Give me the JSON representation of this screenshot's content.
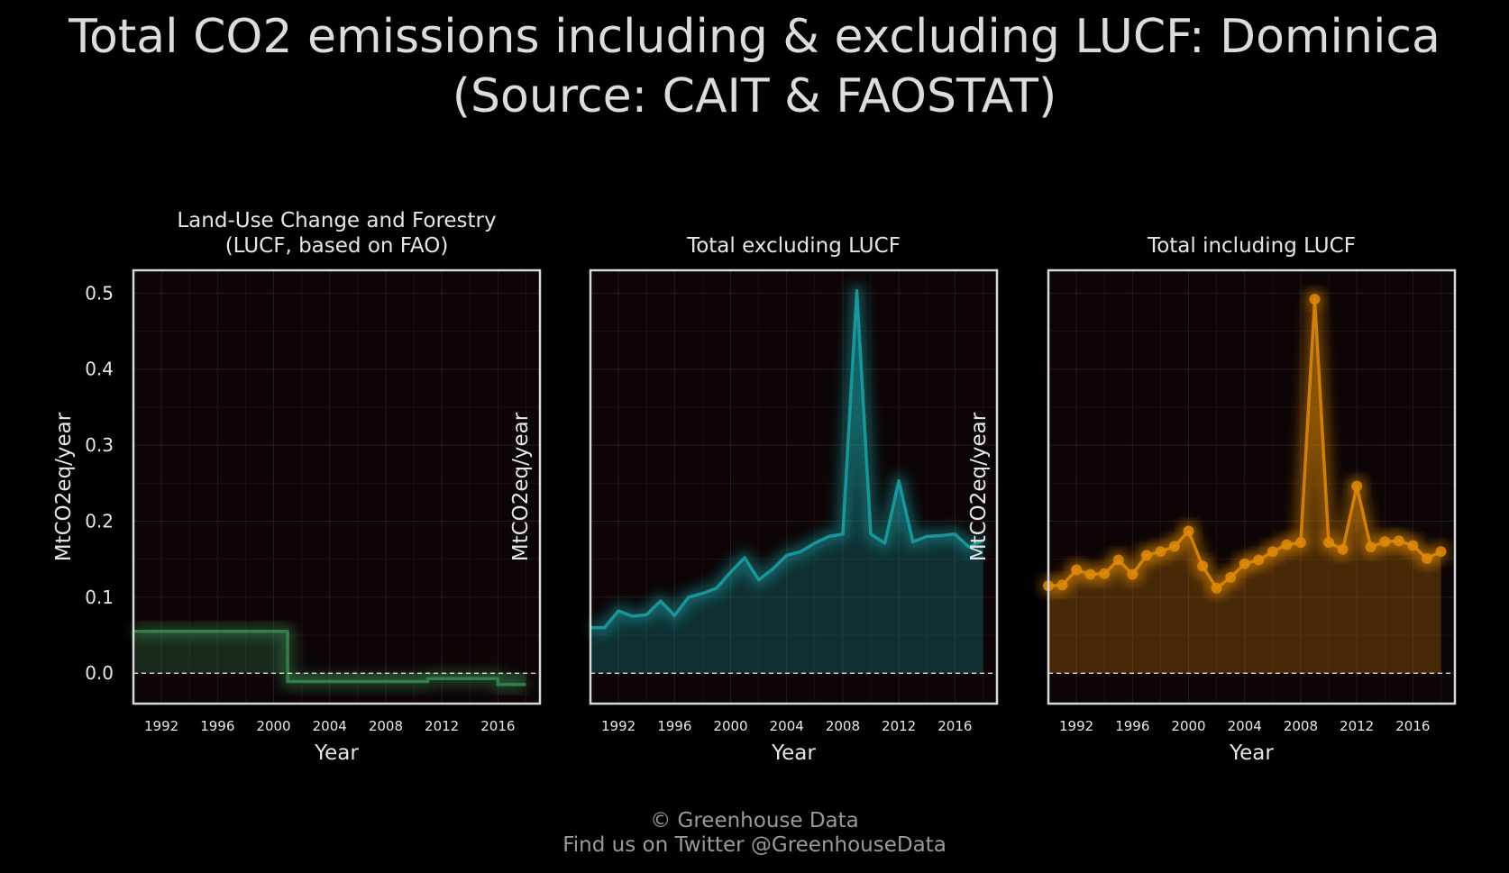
{
  "title": {
    "line1": "Total CO2 emissions including & excluding LUCF: Dominica",
    "line2": "(Source: CAIT & FAOSTAT)"
  },
  "footer": {
    "line1": "© Greenhouse Data",
    "line2": "Find us on Twitter @GreenhouseData"
  },
  "colors": {
    "background": "#000000",
    "plot_background": "#0c0405",
    "frame": "#d9d9d9",
    "lucf": "#3a8a52",
    "excl": "#1aa3a8",
    "incl": "#e08a0a"
  },
  "chart_data": [
    {
      "type": "line",
      "title": [
        "Land-Use Change and Forestry",
        "(LUCF, based on FAO)"
      ],
      "xlabel": "Year",
      "ylabel": "MtCO2eq/year",
      "xlim": [
        1990,
        2019
      ],
      "ylim": [
        -0.04,
        0.53
      ],
      "x_ticks": [
        1992,
        1996,
        2000,
        2004,
        2008,
        2012,
        2016
      ],
      "y_ticks": [
        "0.0",
        "0.1",
        "0.2",
        "0.3",
        "0.4",
        "0.5"
      ],
      "grid": true,
      "step": true,
      "markers": false,
      "fill": true,
      "zero_line": true,
      "series": [
        {
          "color": "#3a8a52",
          "x": [
            1990,
            1991,
            1992,
            1993,
            1994,
            1995,
            1996,
            1997,
            1998,
            1999,
            2000,
            2001,
            2002,
            2003,
            2004,
            2005,
            2006,
            2007,
            2008,
            2009,
            2010,
            2011,
            2012,
            2013,
            2014,
            2015,
            2016,
            2017,
            2018
          ],
          "y": [
            0.055,
            0.055,
            0.055,
            0.055,
            0.055,
            0.055,
            0.055,
            0.055,
            0.055,
            0.055,
            0.055,
            -0.011,
            -0.011,
            -0.011,
            -0.011,
            -0.011,
            -0.011,
            -0.011,
            -0.011,
            -0.011,
            -0.011,
            -0.007,
            -0.007,
            -0.007,
            -0.007,
            -0.007,
            -0.015,
            -0.015,
            -0.015
          ]
        }
      ]
    },
    {
      "type": "area",
      "title": [
        "Total excluding LUCF"
      ],
      "xlabel": "Year",
      "ylabel": "MtCO2eq/year",
      "xlim": [
        1990,
        2019
      ],
      "ylim": [
        -0.04,
        0.53
      ],
      "x_ticks": [
        1992,
        1996,
        2000,
        2004,
        2008,
        2012,
        2016
      ],
      "y_ticks": [],
      "grid": true,
      "step": false,
      "markers": false,
      "fill": true,
      "zero_line": true,
      "series": [
        {
          "color": "#1aa3a8",
          "x": [
            1990,
            1991,
            1992,
            1993,
            1994,
            1995,
            1996,
            1997,
            1998,
            1999,
            2000,
            2001,
            2002,
            2003,
            2004,
            2005,
            2006,
            2007,
            2008,
            2009,
            2010,
            2011,
            2012,
            2013,
            2014,
            2015,
            2016,
            2017,
            2018
          ],
          "y": [
            0.06,
            0.06,
            0.082,
            0.075,
            0.077,
            0.095,
            0.076,
            0.1,
            0.105,
            0.112,
            0.133,
            0.152,
            0.123,
            0.137,
            0.155,
            0.16,
            0.171,
            0.18,
            0.183,
            0.503,
            0.183,
            0.171,
            0.253,
            0.173,
            0.18,
            0.181,
            0.183,
            0.166,
            0.175
          ]
        }
      ]
    },
    {
      "type": "line",
      "title": [
        "Total including LUCF"
      ],
      "xlabel": "Year",
      "ylabel": "MtCO2eq/year",
      "xlim": [
        1990,
        2019
      ],
      "ylim": [
        -0.04,
        0.53
      ],
      "x_ticks": [
        1992,
        1996,
        2000,
        2004,
        2008,
        2012,
        2016
      ],
      "y_ticks": [],
      "grid": true,
      "step": false,
      "markers": true,
      "fill": true,
      "zero_line": true,
      "series": [
        {
          "color": "#e08a0a",
          "x": [
            1990,
            1991,
            1992,
            1993,
            1994,
            1995,
            1996,
            1997,
            1998,
            1999,
            2000,
            2001,
            2002,
            2003,
            2004,
            2005,
            2006,
            2007,
            2008,
            2009,
            2010,
            2011,
            2012,
            2013,
            2014,
            2015,
            2016,
            2017,
            2018
          ],
          "y": [
            0.115,
            0.116,
            0.136,
            0.13,
            0.131,
            0.149,
            0.13,
            0.155,
            0.16,
            0.167,
            0.187,
            0.141,
            0.112,
            0.126,
            0.144,
            0.149,
            0.16,
            0.169,
            0.172,
            0.492,
            0.172,
            0.163,
            0.246,
            0.166,
            0.173,
            0.174,
            0.168,
            0.151,
            0.16
          ]
        }
      ]
    }
  ]
}
